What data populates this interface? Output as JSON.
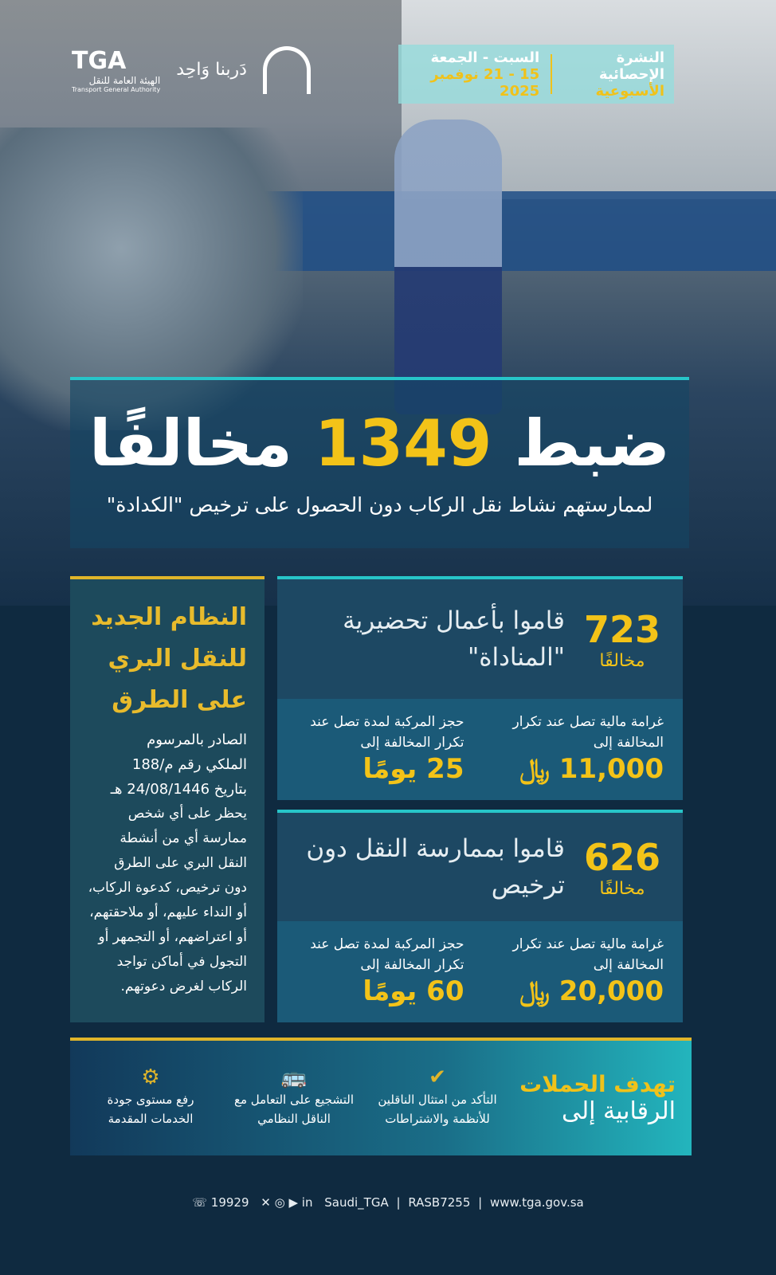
{
  "brand": {
    "tga": "TGA",
    "tga_ar": "الهيئة العامة للنقل",
    "tga_en": "Transport General Authority",
    "darbna": "دَربنا وَاحِد"
  },
  "header": {
    "title_line1": "النشرة الإحصائية",
    "title_line2": "الأسبوعية",
    "days": "السبت - الجمعة",
    "dates": "15 - 21 نوفمبر 2025"
  },
  "headline": {
    "prefix": "ضبط",
    "number": "1349",
    "suffix": "مخالفًا",
    "subtitle": "لممارستهم نشاط نقل الركاب دون الحصول على ترخيص \"الكدادة\""
  },
  "regulation": {
    "title": [
      "النظام الجديد",
      "للنقل البري",
      "على الطرق"
    ],
    "issued": [
      "الصادر بالمرسوم",
      "الملكي رقم م/188",
      "بتاريخ 24/08/1446 هـ"
    ],
    "body": "يحظر على أي شخص ممارسة أي من أنشطة النقل البري على الطرق دون ترخيص، كدعوة الركاب، أو النداء عليهم، أو ملاحقتهم، أو اعتراضهم، أو التجمهر أو التجول في أماكن تواجد الركاب لغرض دعوتهم."
  },
  "violations": [
    {
      "count": "723",
      "count_label": "مخالفًا",
      "description": "قاموا بأعمال تحضيرية \"المناداة\"",
      "fine_label": "غرامة مالية تصل عند تكرار المخالفة إلى",
      "fine_value": "11,000 ﷼",
      "impound_label": "حجز المركبة لمدة تصل عند تكرار المخالفة إلى",
      "impound_value": "25 يومًا"
    },
    {
      "count": "626",
      "count_label": "مخالفًا",
      "description": "قاموا بممارسة النقل دون ترخيص",
      "fine_label": "غرامة مالية تصل عند تكرار المخالفة إلى",
      "fine_value": "20,000 ﷼",
      "impound_label": "حجز المركبة لمدة تصل عند تكرار المخالفة إلى",
      "impound_value": "60 يومًا"
    }
  ],
  "goals": {
    "title_line1": "تهدف الحملات",
    "title_line2": "الرقابية إلى",
    "items": [
      {
        "icon": "driver-car-check-icon",
        "text": "التأكد من امتثال الناقلين للأنظمة والاشتراطات"
      },
      {
        "icon": "bus-icon",
        "text": "التشجيع على التعامل مع الناقل النظامي"
      },
      {
        "icon": "hands-gear-icon",
        "text": "رفع مستوى جودة الخدمات المقدمة"
      }
    ]
  },
  "footer": {
    "phone": "☏ 19929",
    "social": "Saudi_TGA",
    "rasb": "RASB7255",
    "website": "www.tga.gov.sa"
  },
  "colors": {
    "gold": "#f3c318",
    "teal": "#27c5c9",
    "navy": "#0f2a40"
  }
}
